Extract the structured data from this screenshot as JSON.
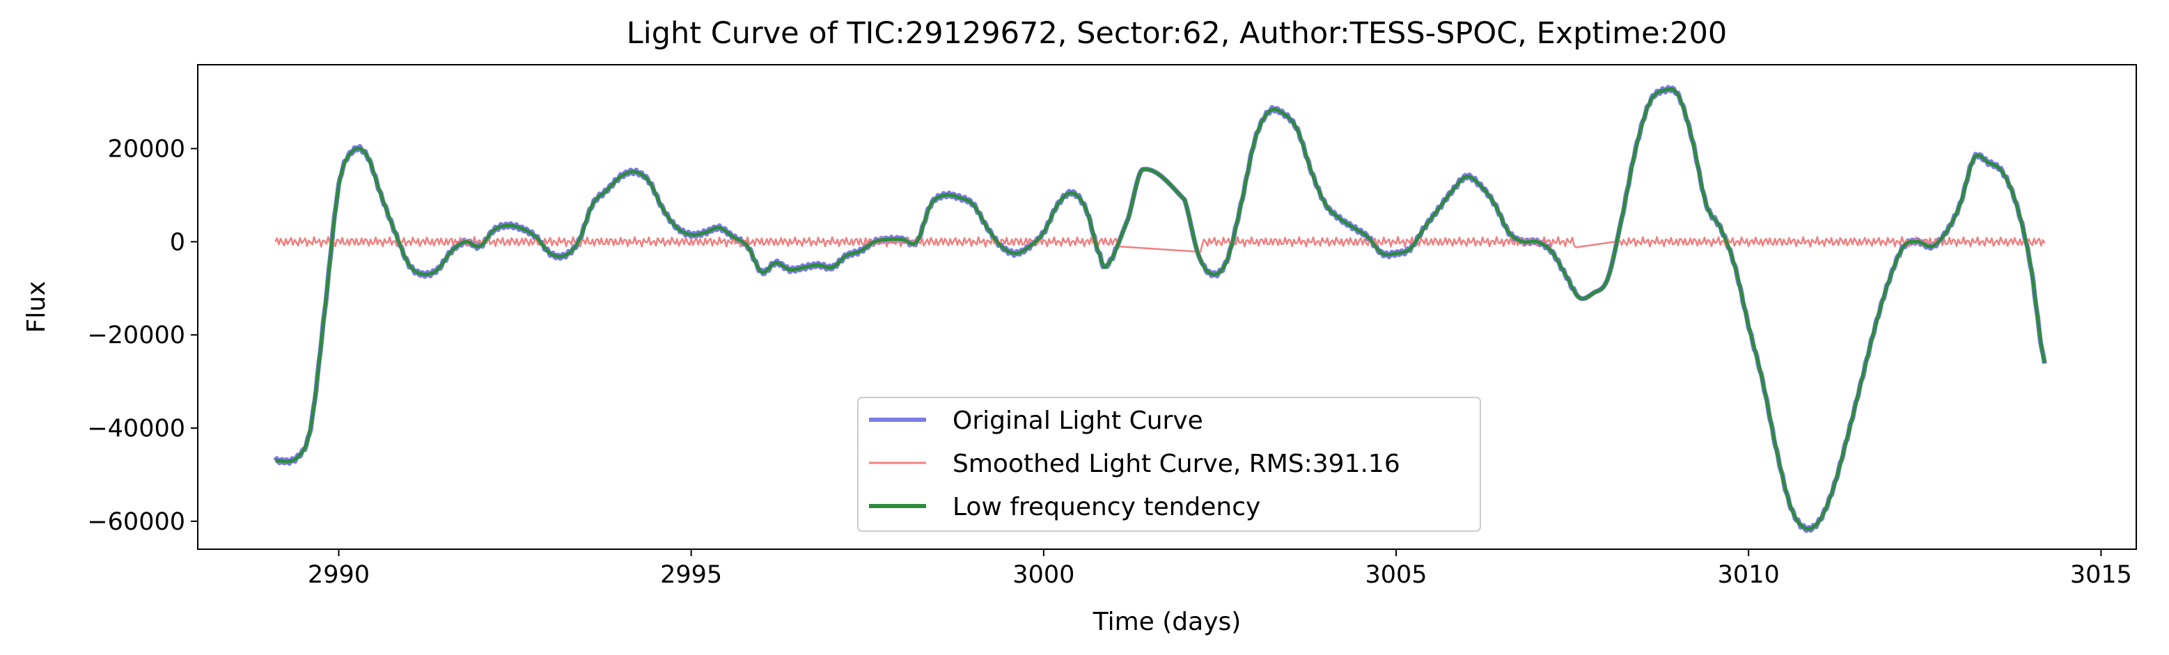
{
  "chart_data": {
    "type": "line",
    "title": "Light Curve of TIC:29129672, Sector:62, Author:TESS-SPOC, Exptime:200",
    "xlabel": "Time (days)",
    "ylabel": "Flux",
    "xlim": [
      2988.0,
      3015.5
    ],
    "ylim": [
      -66000,
      38000
    ],
    "x_ticks": [
      2990,
      2995,
      3000,
      3005,
      3010,
      3015
    ],
    "y_ticks": [
      -60000,
      -40000,
      -20000,
      0,
      20000
    ],
    "y_tick_labels": [
      "−60000",
      "−40000",
      "−20000",
      "0",
      "20000"
    ],
    "grid": false,
    "legend_position": "lower center",
    "series": [
      {
        "name": "Original Light Curve",
        "color": "#7b7be8",
        "points": [
          [
            2989.1,
            -47000
          ],
          [
            2989.4,
            -46500
          ],
          [
            2989.6,
            -40000
          ],
          [
            2989.8,
            -15000
          ],
          [
            2990.0,
            12000
          ],
          [
            2990.2,
            19500
          ],
          [
            2990.4,
            18500
          ],
          [
            2990.6,
            10000
          ],
          [
            2990.8,
            2000
          ],
          [
            2991.0,
            -5000
          ],
          [
            2991.2,
            -7000
          ],
          [
            2991.4,
            -6000
          ],
          [
            2991.6,
            -2000
          ],
          [
            2991.8,
            0
          ],
          [
            2992.0,
            -1000
          ],
          [
            2992.2,
            2500
          ],
          [
            2992.4,
            3500
          ],
          [
            2992.6,
            2800
          ],
          [
            2992.8,
            1000
          ],
          [
            2993.0,
            -2500
          ],
          [
            2993.2,
            -3000
          ],
          [
            2993.4,
            0
          ],
          [
            2993.6,
            8000
          ],
          [
            2993.8,
            11000
          ],
          [
            2994.0,
            14000
          ],
          [
            2994.2,
            15000
          ],
          [
            2994.4,
            13000
          ],
          [
            2994.6,
            7000
          ],
          [
            2994.8,
            3000
          ],
          [
            2995.0,
            1500
          ],
          [
            2995.2,
            2000
          ],
          [
            2995.4,
            3000
          ],
          [
            2995.6,
            1000
          ],
          [
            2995.8,
            -1000
          ],
          [
            2996.0,
            -6500
          ],
          [
            2996.2,
            -4500
          ],
          [
            2996.4,
            -6000
          ],
          [
            2996.6,
            -5500
          ],
          [
            2996.8,
            -5000
          ],
          [
            2997.0,
            -5500
          ],
          [
            2997.2,
            -3000
          ],
          [
            2997.4,
            -2000
          ],
          [
            2997.6,
            0
          ],
          [
            2997.8,
            500
          ],
          [
            2998.0,
            500
          ],
          [
            2998.2,
            0
          ],
          [
            2998.4,
            8000
          ],
          [
            2998.6,
            10000
          ],
          [
            2998.8,
            9500
          ],
          [
            2999.0,
            8000
          ],
          [
            2999.2,
            3000
          ],
          [
            2999.4,
            -1000
          ],
          [
            2999.6,
            -2500
          ],
          [
            2999.8,
            -1000
          ],
          [
            3000.0,
            2000
          ],
          [
            3000.2,
            8000
          ],
          [
            3000.4,
            10500
          ],
          [
            3000.6,
            7000
          ],
          [
            3000.8,
            -3000
          ],
          [
            3000.9,
            -5000
          ],
          [
            3001.2,
            5000
          ],
          [
            3001.4,
            15500
          ],
          [
            3002.0,
            9000
          ],
          [
            3002.2,
            -3000
          ],
          [
            3002.4,
            -7000
          ],
          [
            3002.6,
            -4000
          ],
          [
            3002.8,
            8000
          ],
          [
            3003.0,
            22000
          ],
          [
            3003.2,
            28000
          ],
          [
            3003.4,
            27500
          ],
          [
            3003.6,
            24000
          ],
          [
            3003.8,
            15000
          ],
          [
            3004.0,
            8000
          ],
          [
            3004.2,
            5000
          ],
          [
            3004.4,
            3000
          ],
          [
            3004.6,
            1000
          ],
          [
            3004.8,
            -2500
          ],
          [
            3005.0,
            -2500
          ],
          [
            3005.2,
            -1500
          ],
          [
            3005.4,
            3000
          ],
          [
            3005.6,
            7000
          ],
          [
            3005.8,
            11000
          ],
          [
            3006.0,
            14000
          ],
          [
            3006.2,
            12000
          ],
          [
            3006.4,
            8000
          ],
          [
            3006.6,
            2000
          ],
          [
            3006.8,
            0
          ],
          [
            3007.0,
            0
          ],
          [
            3007.2,
            -2000
          ],
          [
            3007.4,
            -7000
          ],
          [
            3007.6,
            -12000
          ],
          [
            3007.8,
            -11000
          ],
          [
            3008.0,
            -8000
          ],
          [
            3008.2,
            5000
          ],
          [
            3008.4,
            20000
          ],
          [
            3008.6,
            30000
          ],
          [
            3008.8,
            32500
          ],
          [
            3009.0,
            31500
          ],
          [
            3009.2,
            22000
          ],
          [
            3009.4,
            8000
          ],
          [
            3009.6,
            3000
          ],
          [
            3009.8,
            -5000
          ],
          [
            3010.0,
            -18000
          ],
          [
            3010.2,
            -30000
          ],
          [
            3010.4,
            -45000
          ],
          [
            3010.6,
            -57000
          ],
          [
            3010.8,
            -61500
          ],
          [
            3011.0,
            -60000
          ],
          [
            3011.2,
            -53000
          ],
          [
            3011.4,
            -42000
          ],
          [
            3011.6,
            -30000
          ],
          [
            3011.8,
            -18000
          ],
          [
            3012.0,
            -8000
          ],
          [
            3012.2,
            -1000
          ],
          [
            3012.4,
            0
          ],
          [
            3012.6,
            -1000
          ],
          [
            3012.8,
            2000
          ],
          [
            3013.0,
            8000
          ],
          [
            3013.2,
            18000
          ],
          [
            3013.4,
            17000
          ],
          [
            3013.6,
            15000
          ],
          [
            3013.8,
            8000
          ],
          [
            3014.0,
            -5000
          ],
          [
            3014.2,
            -26000
          ]
        ]
      },
      {
        "name": "Smoothed Light Curve, RMS:391.16",
        "color": "#f08080",
        "rms": 391.16
      },
      {
        "name": "Low frequency tendency",
        "color": "#2e8b3e"
      }
    ]
  }
}
